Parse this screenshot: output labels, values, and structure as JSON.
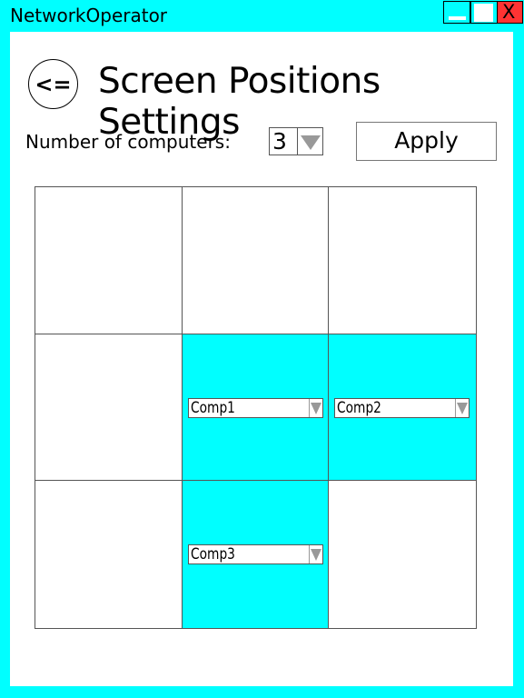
{
  "window": {
    "title": "NetworkOperator",
    "close_glyph": "X"
  },
  "header": {
    "back_label": "<=",
    "title": "Screen Positions Settings"
  },
  "controls": {
    "count_label": "Number of computers:",
    "count_value": "3",
    "apply_label": "Apply"
  },
  "grid": {
    "rows": 3,
    "cols": 3,
    "cells": [
      {
        "row": 1,
        "col": 1,
        "computer": ""
      },
      {
        "row": 1,
        "col": 2,
        "computer": ""
      },
      {
        "row": 1,
        "col": 3,
        "computer": ""
      },
      {
        "row": 2,
        "col": 1,
        "computer": ""
      },
      {
        "row": 2,
        "col": 2,
        "computer": "Comp1"
      },
      {
        "row": 2,
        "col": 3,
        "computer": "Comp2"
      },
      {
        "row": 3,
        "col": 1,
        "computer": ""
      },
      {
        "row": 3,
        "col": 2,
        "computer": "Comp3"
      },
      {
        "row": 3,
        "col": 3,
        "computer": ""
      }
    ]
  },
  "colors": {
    "frame": "#00ffff",
    "assigned_cell": "#00ffff",
    "close_button": "#ff3333"
  }
}
